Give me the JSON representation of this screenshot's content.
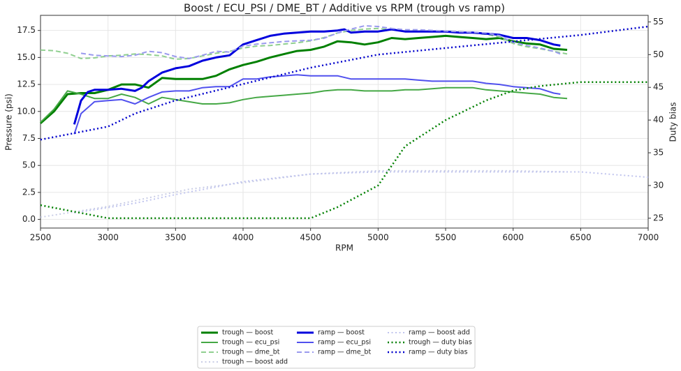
{
  "chart_data": {
    "type": "line",
    "title": "Boost / ECU_PSI / DME_BT / Additive vs RPM (trough vs ramp)",
    "xlabel": "RPM",
    "ylabel": "Pressure (psi)",
    "y2label": "Duty bias",
    "xlim": [
      2500,
      7000
    ],
    "xticks": [
      2500,
      3000,
      3500,
      4000,
      4500,
      5000,
      5500,
      6000,
      6500,
      7000
    ],
    "ylim": [
      -0.8,
      18.9
    ],
    "yticks": [
      {
        "value": 0,
        "label": "0.0"
      },
      2.5,
      {
        "value": 5,
        "label": "5.0"
      },
      7.5,
      {
        "value": 10,
        "label": "10.0"
      },
      12.5,
      {
        "value": 15,
        "label": "15.0"
      },
      17.5
    ],
    "y2lim": [
      23.5,
      56
    ],
    "y2ticks": [
      25,
      30,
      35,
      40,
      45,
      50,
      55
    ],
    "grid": true,
    "legend": "lower center",
    "series": [
      {
        "name": "trough — boost",
        "color": "#008000",
        "linestyle": "solid",
        "linewidth": 3,
        "x": [
          2500,
          2600,
          2700,
          2800,
          2900,
          3000,
          3100,
          3200,
          3300,
          3400,
          3500,
          3600,
          3700,
          3800,
          3900,
          4000,
          4100,
          4200,
          4300,
          4400,
          4500,
          4600,
          4700,
          4800,
          4900,
          5000,
          5100,
          5200,
          5300,
          5400,
          5500,
          5600,
          5700,
          5800,
          5900,
          6000,
          6100,
          6200,
          6300,
          6400
        ],
        "values": [
          8.9,
          10.0,
          11.6,
          11.7,
          11.7,
          12.0,
          12.5,
          12.5,
          12.2,
          13.1,
          13.0,
          13.0,
          13.0,
          13.3,
          13.9,
          14.3,
          14.6,
          15.0,
          15.3,
          15.6,
          15.7,
          16.0,
          16.5,
          16.4,
          16.2,
          16.4,
          16.8,
          16.7,
          16.8,
          16.9,
          17.0,
          16.9,
          16.8,
          16.7,
          16.8,
          16.5,
          16.3,
          16.2,
          15.8,
          15.7
        ]
      },
      {
        "name": "trough — ecu_psi",
        "color": "#45a845",
        "linestyle": "solid",
        "linewidth": 2,
        "x": [
          2500,
          2600,
          2700,
          2800,
          2900,
          3000,
          3100,
          3200,
          3300,
          3400,
          3500,
          3600,
          3700,
          3800,
          3900,
          4000,
          4100,
          4200,
          4300,
          4400,
          4500,
          4600,
          4700,
          4800,
          4900,
          5000,
          5100,
          5200,
          5300,
          5400,
          5500,
          5600,
          5700,
          5800,
          5900,
          6000,
          6100,
          6200,
          6300,
          6400
        ],
        "values": [
          9.0,
          10.2,
          11.9,
          11.6,
          11.2,
          11.2,
          11.6,
          11.3,
          10.7,
          11.3,
          11.1,
          10.9,
          10.7,
          10.7,
          10.8,
          11.1,
          11.3,
          11.4,
          11.5,
          11.6,
          11.7,
          11.9,
          12.0,
          12.0,
          11.9,
          11.9,
          11.9,
          12.0,
          12.0,
          12.1,
          12.2,
          12.2,
          12.2,
          12.0,
          11.9,
          11.8,
          11.7,
          11.6,
          11.3,
          11.2
        ]
      },
      {
        "name": "trough — dme_bt",
        "color": "#8fcf8f",
        "linestyle": "dashed",
        "linewidth": 2,
        "axis": "y2",
        "x": [
          2500,
          2600,
          2700,
          2800,
          2900,
          3000,
          3100,
          3200,
          3300,
          3400,
          3500,
          3600,
          3700,
          3800,
          3900,
          4000,
          4100,
          4200,
          4300,
          4400,
          4500,
          4600,
          4700,
          4800,
          4900,
          5000,
          5100,
          5200,
          5300,
          5400,
          5500,
          5600,
          5700,
          5800,
          5900,
          6000,
          6100,
          6200,
          6300,
          6400
        ],
        "values": [
          50.7,
          50.6,
          50.2,
          49.4,
          49.5,
          49.8,
          49.9,
          50.1,
          50.0,
          49.8,
          49.3,
          49.4,
          49.8,
          50.2,
          50.5,
          51.0,
          51.3,
          51.4,
          51.6,
          51.8,
          52.1,
          52.6,
          53.3,
          53.7,
          53.9,
          54.0,
          53.8,
          53.6,
          53.6,
          53.6,
          53.6,
          53.5,
          53.3,
          53.1,
          52.7,
          51.7,
          51.2,
          50.9,
          50.5,
          50.1
        ]
      },
      {
        "name": "trough — boost add",
        "color": "#c9cde6",
        "linestyle": "dotted",
        "linewidth": 2,
        "x": [
          2500,
          2800,
          3000,
          3300,
          3600,
          4000,
          4500,
          5000,
          5500,
          6000,
          6400
        ],
        "values": [
          0.2,
          0.8,
          1.2,
          2.0,
          2.8,
          3.4,
          4.2,
          4.5,
          4.5,
          4.5,
          4.4
        ]
      },
      {
        "name": "ramp — boost",
        "color": "#0000dd",
        "linestyle": "solid",
        "linewidth": 3,
        "x": [
          2750,
          2800,
          2850,
          2900,
          3000,
          3100,
          3200,
          3250,
          3300,
          3400,
          3500,
          3600,
          3700,
          3800,
          3900,
          4000,
          4100,
          4200,
          4300,
          4400,
          4500,
          4600,
          4700,
          4750,
          4800,
          4900,
          5000,
          5100,
          5200,
          5300,
          5400,
          5500,
          5600,
          5700,
          5800,
          5900,
          6000,
          6100,
          6200,
          6300,
          6350
        ],
        "values": [
          8.8,
          11.0,
          11.8,
          12.0,
          12.0,
          12.1,
          11.9,
          12.2,
          12.8,
          13.6,
          14.0,
          14.2,
          14.7,
          15.0,
          15.2,
          16.2,
          16.6,
          17.0,
          17.2,
          17.3,
          17.4,
          17.4,
          17.5,
          17.6,
          17.3,
          17.4,
          17.4,
          17.6,
          17.4,
          17.4,
          17.4,
          17.4,
          17.3,
          17.3,
          17.2,
          17.1,
          16.8,
          16.8,
          16.6,
          16.2,
          16.1
        ]
      },
      {
        "name": "ramp — ecu_psi",
        "color": "#5050ee",
        "linestyle": "solid",
        "linewidth": 2,
        "x": [
          2750,
          2800,
          2900,
          3000,
          3100,
          3200,
          3300,
          3400,
          3500,
          3600,
          3700,
          3800,
          3900,
          4000,
          4100,
          4200,
          4300,
          4400,
          4500,
          4600,
          4700,
          4800,
          4900,
          5000,
          5100,
          5200,
          5300,
          5400,
          5500,
          5600,
          5700,
          5800,
          5900,
          6000,
          6100,
          6200,
          6300,
          6350
        ],
        "values": [
          7.9,
          9.8,
          10.9,
          11.0,
          11.1,
          10.7,
          11.3,
          11.8,
          11.9,
          11.9,
          12.2,
          12.3,
          12.3,
          13.0,
          13.0,
          13.2,
          13.3,
          13.4,
          13.3,
          13.3,
          13.3,
          13.0,
          13.0,
          13.0,
          13.0,
          13.0,
          12.9,
          12.8,
          12.8,
          12.8,
          12.8,
          12.6,
          12.5,
          12.3,
          12.2,
          12.1,
          11.7,
          11.6
        ]
      },
      {
        "name": "ramp — dme_bt",
        "color": "#9a9aee",
        "linestyle": "dashed",
        "linewidth": 2,
        "axis": "y2",
        "x": [
          2800,
          2900,
          3000,
          3100,
          3200,
          3300,
          3400,
          3500,
          3600,
          3700,
          3800,
          3900,
          4000,
          4100,
          4200,
          4300,
          4400,
          4500,
          4600,
          4700,
          4800,
          4900,
          5000,
          5100,
          5200,
          5300,
          5400,
          5500,
          5600,
          5700,
          5800,
          5900,
          6000,
          6100,
          6200,
          6300,
          6350
        ],
        "values": [
          50.2,
          49.9,
          49.8,
          49.7,
          49.9,
          50.5,
          50.3,
          49.7,
          49.4,
          49.9,
          50.5,
          50.4,
          51.3,
          51.6,
          51.8,
          52.0,
          52.1,
          52.2,
          52.5,
          53.3,
          53.9,
          54.4,
          54.3,
          54.0,
          53.8,
          53.8,
          53.7,
          53.6,
          53.5,
          53.4,
          53.3,
          52.9,
          51.9,
          51.4,
          51.0,
          50.5,
          50.1
        ]
      },
      {
        "name": "ramp — boost add",
        "color": "#c0c4ee",
        "linestyle": "dotted",
        "linewidth": 2,
        "x": [
          2750,
          3000,
          3200,
          3500,
          3800,
          4000,
          4500,
          5000,
          5500,
          6000,
          6500,
          7000
        ],
        "values": [
          0.6,
          1.1,
          1.5,
          2.3,
          3.0,
          3.5,
          4.2,
          4.4,
          4.4,
          4.4,
          4.4,
          3.9
        ]
      },
      {
        "name": "trough — duty bias",
        "color": "#008000",
        "linestyle": "dotted",
        "linewidth": 2.5,
        "axis": "y2",
        "x": [
          2500,
          2700,
          3000,
          3500,
          4000,
          4500,
          4700,
          5000,
          5200,
          5500,
          5800,
          6000,
          6200,
          6500,
          7000
        ],
        "values": [
          27,
          26.2,
          25,
          25,
          25,
          25,
          26.7,
          30,
          36,
          40,
          43,
          44.5,
          45.2,
          45.8,
          45.8
        ]
      },
      {
        "name": "ramp — duty bias",
        "color": "#0000cc",
        "linestyle": "dotted",
        "linewidth": 2.5,
        "axis": "y2",
        "x": [
          2500,
          2700,
          3000,
          3200,
          3500,
          3800,
          4000,
          4500,
          5000,
          5500,
          6000,
          6500,
          7000
        ],
        "values": [
          37,
          37.8,
          39,
          41,
          43,
          44.5,
          45.5,
          48,
          50,
          51,
          52,
          53,
          54.3
        ]
      }
    ]
  }
}
